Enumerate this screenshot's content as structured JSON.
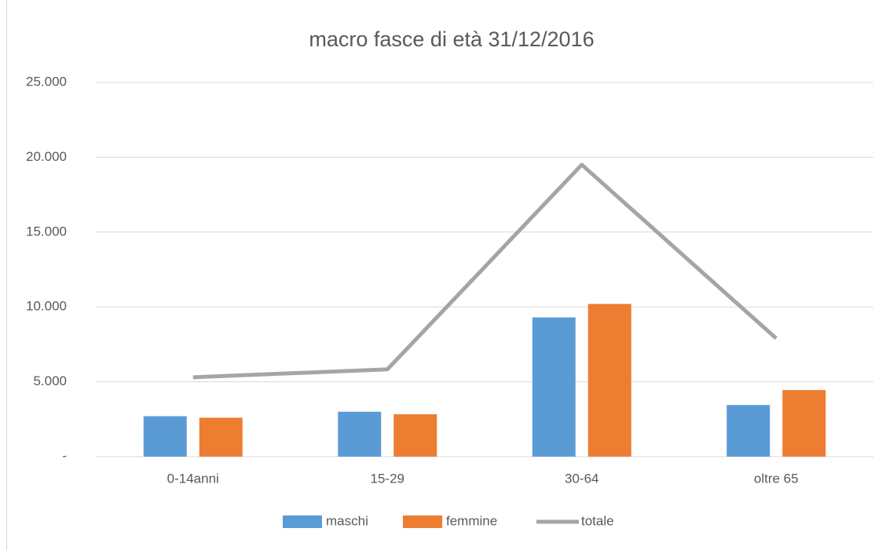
{
  "chart_data": {
    "type": "bar-line",
    "title": "macro fasce di età 31/12/2016",
    "categories": [
      "0-14anni",
      "15-29",
      "30-64",
      "oltre 65"
    ],
    "series": [
      {
        "name": "maschi",
        "type": "bar",
        "color": "#5b9bd5",
        "values": [
          2700,
          3000,
          9300,
          3450
        ]
      },
      {
        "name": "femmine",
        "type": "bar",
        "color": "#ed7d31",
        "values": [
          2600,
          2830,
          10200,
          4450
        ]
      },
      {
        "name": "totale",
        "type": "line",
        "color": "#a5a5a5",
        "values": [
          5300,
          5830,
          19500,
          7900
        ]
      }
    ],
    "ylim": [
      0,
      25000
    ],
    "yticks": [
      {
        "value": 0,
        "label": "-"
      },
      {
        "value": 5000,
        "label": "5.000"
      },
      {
        "value": 10000,
        "label": "10.000"
      },
      {
        "value": 15000,
        "label": "15.000"
      },
      {
        "value": 20000,
        "label": "20.000"
      },
      {
        "value": 25000,
        "label": "25.000"
      }
    ],
    "grid": true,
    "legend": "bottom"
  }
}
